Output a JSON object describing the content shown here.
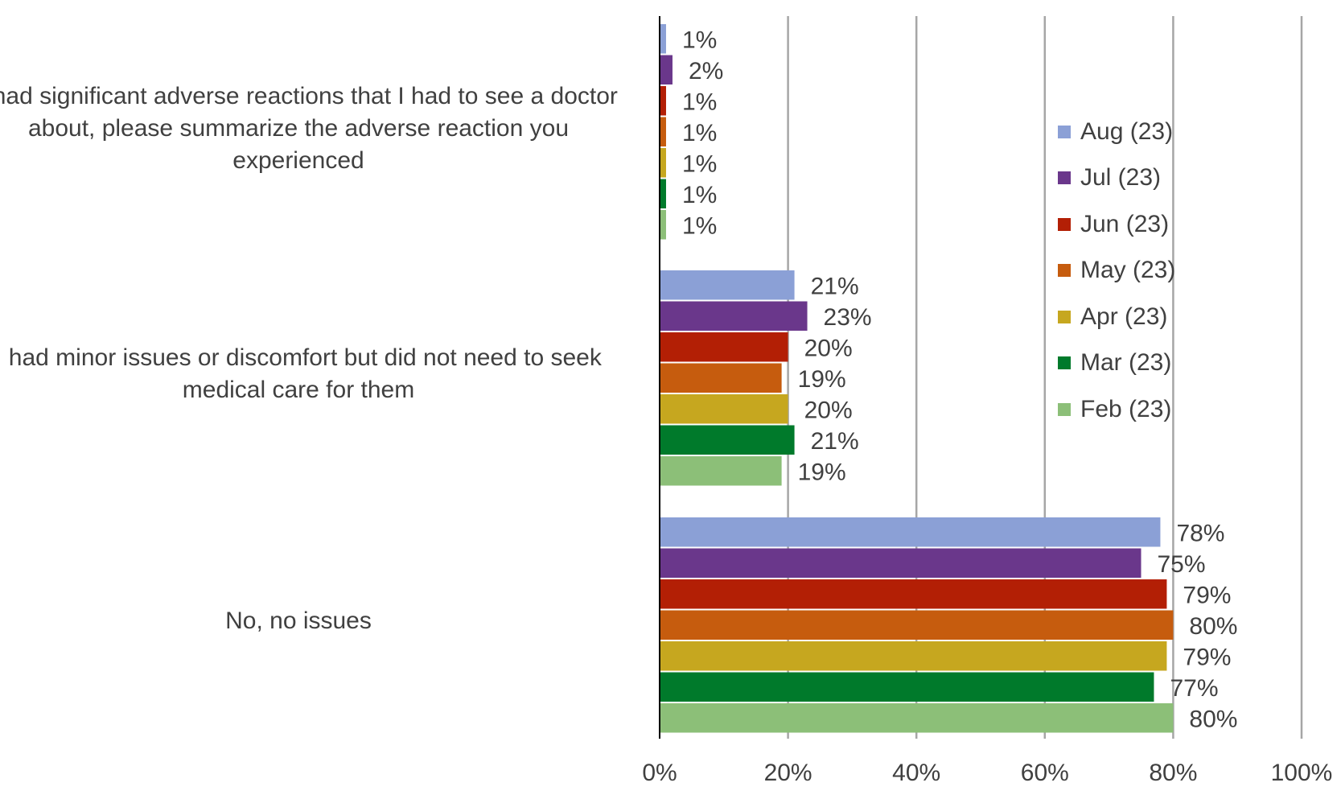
{
  "chart_data": {
    "type": "bar",
    "orientation": "horizontal",
    "title": "",
    "xlabel": "",
    "ylabel": "",
    "xlim": [
      0,
      100
    ],
    "x_ticks": [
      "0%",
      "20%",
      "40%",
      "60%",
      "80%",
      "100%"
    ],
    "x_tick_values": [
      0,
      20,
      40,
      60,
      80,
      100
    ],
    "grid": "vertical",
    "legend_position": "right",
    "categories": [
      "I had significant adverse reactions that I had to see a doctor about, please summarize the adverse reaction you experienced",
      "I had minor issues or discomfort but did not need to seek medical care for them",
      "No, no issues"
    ],
    "series": [
      {
        "name": "Aug (23)",
        "color": "#8ba0d6",
        "values": [
          1,
          21,
          78
        ],
        "labels": [
          "1%",
          "21%",
          "78%"
        ]
      },
      {
        "name": "Jul (23)",
        "color": "#6a378b",
        "values": [
          2,
          23,
          75
        ],
        "labels": [
          "2%",
          "23%",
          "75%"
        ]
      },
      {
        "name": "Jun (23)",
        "color": "#b31f05",
        "values": [
          1,
          20,
          79
        ],
        "labels": [
          "1%",
          "20%",
          "79%"
        ]
      },
      {
        "name": "May (23)",
        "color": "#c65c0e",
        "values": [
          1,
          19,
          80
        ],
        "labels": [
          "1%",
          "19%",
          "80%"
        ]
      },
      {
        "name": "Apr (23)",
        "color": "#c6a71f",
        "values": [
          1,
          20,
          79
        ],
        "labels": [
          "1%",
          "20%",
          "79%"
        ]
      },
      {
        "name": "Mar (23)",
        "color": "#007a2b",
        "values": [
          1,
          21,
          77
        ],
        "labels": [
          "1%",
          "21%",
          "77%"
        ]
      },
      {
        "name": "Feb (23)",
        "color": "#8cbf78",
        "values": [
          1,
          19,
          80
        ],
        "labels": [
          "1%",
          "19%",
          "80%"
        ]
      }
    ],
    "colors": {
      "gridline": "#a6a6a6",
      "axis": "#000000",
      "text": "#404040"
    }
  }
}
